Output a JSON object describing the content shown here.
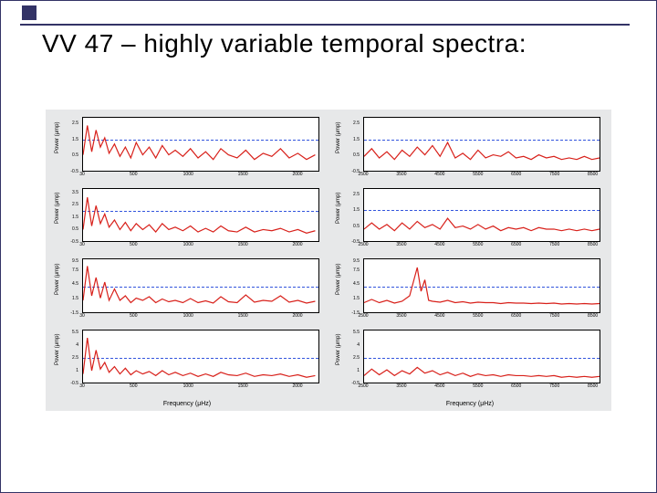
{
  "title": "VV 47 – highly variable temporal spectra:",
  "chart": {
    "background": "#e7e8e9",
    "plot_bg": "#ffffff",
    "axis_color": "#000000",
    "series_color": "#d8201a",
    "threshold_color": "#3355dd",
    "ylabel": "Power (μmp)",
    "xlabel": "Frequency (μHz)",
    "left_xlim": [
      30,
      2200
    ],
    "left_xticks": [
      30,
      500,
      1000,
      1500,
      2000
    ],
    "right_xlim": [
      2500,
      8700
    ],
    "right_xticks": [
      2500,
      3500,
      4500,
      5500,
      6500,
      7500,
      8500
    ],
    "panels": [
      {
        "col": "left",
        "row": 0,
        "ylim": [
          -0.5,
          2.9
        ],
        "yticks": [
          -0.5,
          0.5,
          1.5,
          2.5
        ],
        "threshold": 1.5,
        "series": [
          [
            30,
            0.5
          ],
          [
            70,
            2.4
          ],
          [
            110,
            0.7
          ],
          [
            150,
            2.1
          ],
          [
            190,
            1.0
          ],
          [
            230,
            1.6
          ],
          [
            270,
            0.6
          ],
          [
            320,
            1.2
          ],
          [
            370,
            0.4
          ],
          [
            420,
            1.0
          ],
          [
            470,
            0.3
          ],
          [
            520,
            1.3
          ],
          [
            580,
            0.5
          ],
          [
            640,
            1.0
          ],
          [
            700,
            0.3
          ],
          [
            760,
            1.1
          ],
          [
            820,
            0.5
          ],
          [
            880,
            0.8
          ],
          [
            950,
            0.4
          ],
          [
            1020,
            0.9
          ],
          [
            1090,
            0.3
          ],
          [
            1160,
            0.7
          ],
          [
            1230,
            0.2
          ],
          [
            1300,
            0.9
          ],
          [
            1370,
            0.5
          ],
          [
            1450,
            0.3
          ],
          [
            1530,
            0.8
          ],
          [
            1610,
            0.2
          ],
          [
            1690,
            0.6
          ],
          [
            1770,
            0.4
          ],
          [
            1850,
            0.9
          ],
          [
            1930,
            0.3
          ],
          [
            2010,
            0.6
          ],
          [
            2090,
            0.2
          ],
          [
            2170,
            0.5
          ]
        ]
      },
      {
        "col": "right",
        "row": 0,
        "ylim": [
          -0.5,
          2.9
        ],
        "yticks": [
          -0.5,
          0.5,
          1.5,
          2.5
        ],
        "threshold": 1.5,
        "series": [
          [
            2500,
            0.4
          ],
          [
            2700,
            0.9
          ],
          [
            2900,
            0.3
          ],
          [
            3100,
            0.7
          ],
          [
            3300,
            0.2
          ],
          [
            3500,
            0.8
          ],
          [
            3700,
            0.4
          ],
          [
            3900,
            1.0
          ],
          [
            4100,
            0.5
          ],
          [
            4300,
            1.1
          ],
          [
            4500,
            0.4
          ],
          [
            4700,
            1.3
          ],
          [
            4900,
            0.3
          ],
          [
            5100,
            0.6
          ],
          [
            5300,
            0.2
          ],
          [
            5500,
            0.8
          ],
          [
            5700,
            0.3
          ],
          [
            5900,
            0.5
          ],
          [
            6100,
            0.4
          ],
          [
            6300,
            0.7
          ],
          [
            6500,
            0.3
          ],
          [
            6700,
            0.4
          ],
          [
            6900,
            0.2
          ],
          [
            7100,
            0.5
          ],
          [
            7300,
            0.3
          ],
          [
            7500,
            0.4
          ],
          [
            7700,
            0.2
          ],
          [
            7900,
            0.3
          ],
          [
            8100,
            0.2
          ],
          [
            8300,
            0.4
          ],
          [
            8500,
            0.2
          ],
          [
            8700,
            0.3
          ]
        ]
      },
      {
        "col": "left",
        "row": 1,
        "ylim": [
          -0.5,
          3.9
        ],
        "yticks": [
          -0.5,
          0.5,
          1.5,
          2.5,
          3.5
        ],
        "threshold": 2.0,
        "series": [
          [
            30,
            0.5
          ],
          [
            70,
            3.2
          ],
          [
            110,
            0.8
          ],
          [
            150,
            2.5
          ],
          [
            190,
            1.0
          ],
          [
            230,
            1.8
          ],
          [
            270,
            0.7
          ],
          [
            320,
            1.3
          ],
          [
            370,
            0.5
          ],
          [
            420,
            1.1
          ],
          [
            470,
            0.4
          ],
          [
            520,
            1.0
          ],
          [
            580,
            0.5
          ],
          [
            640,
            0.9
          ],
          [
            700,
            0.3
          ],
          [
            760,
            1.0
          ],
          [
            820,
            0.5
          ],
          [
            880,
            0.7
          ],
          [
            950,
            0.4
          ],
          [
            1020,
            0.8
          ],
          [
            1090,
            0.3
          ],
          [
            1160,
            0.6
          ],
          [
            1230,
            0.3
          ],
          [
            1300,
            0.8
          ],
          [
            1370,
            0.4
          ],
          [
            1450,
            0.3
          ],
          [
            1530,
            0.7
          ],
          [
            1610,
            0.3
          ],
          [
            1690,
            0.5
          ],
          [
            1770,
            0.4
          ],
          [
            1850,
            0.6
          ],
          [
            1930,
            0.3
          ],
          [
            2010,
            0.5
          ],
          [
            2090,
            0.2
          ],
          [
            2170,
            0.4
          ]
        ]
      },
      {
        "col": "right",
        "row": 1,
        "ylim": [
          -0.5,
          2.9
        ],
        "yticks": [
          -0.5,
          0.5,
          1.5,
          2.5
        ],
        "threshold": 1.5,
        "series": [
          [
            2500,
            0.3
          ],
          [
            2700,
            0.7
          ],
          [
            2900,
            0.3
          ],
          [
            3100,
            0.6
          ],
          [
            3300,
            0.2
          ],
          [
            3500,
            0.7
          ],
          [
            3700,
            0.3
          ],
          [
            3900,
            0.8
          ],
          [
            4100,
            0.4
          ],
          [
            4300,
            0.6
          ],
          [
            4500,
            0.3
          ],
          [
            4700,
            1.0
          ],
          [
            4900,
            0.4
          ],
          [
            5100,
            0.5
          ],
          [
            5300,
            0.3
          ],
          [
            5500,
            0.6
          ],
          [
            5700,
            0.3
          ],
          [
            5900,
            0.5
          ],
          [
            6100,
            0.2
          ],
          [
            6300,
            0.4
          ],
          [
            6500,
            0.3
          ],
          [
            6700,
            0.4
          ],
          [
            6900,
            0.2
          ],
          [
            7100,
            0.4
          ],
          [
            7300,
            0.3
          ],
          [
            7500,
            0.3
          ],
          [
            7700,
            0.2
          ],
          [
            7900,
            0.3
          ],
          [
            8100,
            0.2
          ],
          [
            8300,
            0.3
          ],
          [
            8500,
            0.2
          ],
          [
            8700,
            0.3
          ]
        ]
      },
      {
        "col": "left",
        "row": 2,
        "ylim": [
          -1.5,
          10.0
        ],
        "yticks": [
          -1.5,
          1.5,
          4.5,
          7.5,
          9.5
        ],
        "threshold": 4.0,
        "series": [
          [
            30,
            1.0
          ],
          [
            70,
            8.5
          ],
          [
            110,
            2.0
          ],
          [
            150,
            6.0
          ],
          [
            190,
            1.5
          ],
          [
            230,
            5.0
          ],
          [
            270,
            1.0
          ],
          [
            320,
            3.5
          ],
          [
            370,
            1.0
          ],
          [
            420,
            2.0
          ],
          [
            470,
            0.5
          ],
          [
            520,
            1.5
          ],
          [
            580,
            1.0
          ],
          [
            640,
            1.8
          ],
          [
            700,
            0.5
          ],
          [
            760,
            1.3
          ],
          [
            820,
            0.7
          ],
          [
            880,
            1.0
          ],
          [
            950,
            0.5
          ],
          [
            1020,
            1.4
          ],
          [
            1090,
            0.5
          ],
          [
            1160,
            0.9
          ],
          [
            1230,
            0.4
          ],
          [
            1300,
            1.8
          ],
          [
            1370,
            0.7
          ],
          [
            1450,
            0.5
          ],
          [
            1530,
            2.2
          ],
          [
            1610,
            0.6
          ],
          [
            1690,
            1.0
          ],
          [
            1770,
            0.8
          ],
          [
            1850,
            2.0
          ],
          [
            1930,
            0.6
          ],
          [
            2010,
            1.0
          ],
          [
            2090,
            0.4
          ],
          [
            2170,
            0.8
          ]
        ]
      },
      {
        "col": "right",
        "row": 2,
        "ylim": [
          -1.5,
          10.0
        ],
        "yticks": [
          -1.5,
          1.5,
          4.5,
          7.5,
          9.5
        ],
        "threshold": 4.0,
        "series": [
          [
            2500,
            0.5
          ],
          [
            2700,
            1.2
          ],
          [
            2900,
            0.5
          ],
          [
            3100,
            1.0
          ],
          [
            3300,
            0.4
          ],
          [
            3500,
            0.8
          ],
          [
            3700,
            2.0
          ],
          [
            3900,
            8.2
          ],
          [
            4000,
            3.0
          ],
          [
            4100,
            5.5
          ],
          [
            4200,
            1.0
          ],
          [
            4300,
            0.8
          ],
          [
            4500,
            0.6
          ],
          [
            4700,
            1.0
          ],
          [
            4900,
            0.5
          ],
          [
            5100,
            0.7
          ],
          [
            5300,
            0.4
          ],
          [
            5500,
            0.6
          ],
          [
            5700,
            0.5
          ],
          [
            5900,
            0.5
          ],
          [
            6100,
            0.3
          ],
          [
            6300,
            0.5
          ],
          [
            6500,
            0.4
          ],
          [
            6700,
            0.4
          ],
          [
            6900,
            0.3
          ],
          [
            7100,
            0.4
          ],
          [
            7300,
            0.3
          ],
          [
            7500,
            0.4
          ],
          [
            7700,
            0.2
          ],
          [
            7900,
            0.3
          ],
          [
            8100,
            0.2
          ],
          [
            8300,
            0.3
          ],
          [
            8500,
            0.2
          ],
          [
            8700,
            0.3
          ]
        ]
      },
      {
        "col": "left",
        "row": 3,
        "ylim": [
          -0.5,
          5.9
        ],
        "yticks": [
          -0.5,
          1.0,
          2.5,
          4.0,
          5.5
        ],
        "threshold": 2.5,
        "series": [
          [
            30,
            0.6
          ],
          [
            70,
            5.0
          ],
          [
            110,
            1.0
          ],
          [
            150,
            3.5
          ],
          [
            190,
            1.2
          ],
          [
            230,
            2.0
          ],
          [
            270,
            0.8
          ],
          [
            320,
            1.5
          ],
          [
            370,
            0.6
          ],
          [
            420,
            1.3
          ],
          [
            470,
            0.5
          ],
          [
            520,
            1.0
          ],
          [
            580,
            0.6
          ],
          [
            640,
            0.9
          ],
          [
            700,
            0.4
          ],
          [
            760,
            1.0
          ],
          [
            820,
            0.5
          ],
          [
            880,
            0.8
          ],
          [
            950,
            0.4
          ],
          [
            1020,
            0.7
          ],
          [
            1090,
            0.3
          ],
          [
            1160,
            0.6
          ],
          [
            1230,
            0.3
          ],
          [
            1300,
            0.8
          ],
          [
            1370,
            0.5
          ],
          [
            1450,
            0.4
          ],
          [
            1530,
            0.7
          ],
          [
            1610,
            0.3
          ],
          [
            1690,
            0.5
          ],
          [
            1770,
            0.4
          ],
          [
            1850,
            0.6
          ],
          [
            1930,
            0.3
          ],
          [
            2010,
            0.5
          ],
          [
            2090,
            0.2
          ],
          [
            2170,
            0.4
          ]
        ]
      },
      {
        "col": "right",
        "row": 3,
        "ylim": [
          -0.5,
          5.9
        ],
        "yticks": [
          -0.5,
          1.0,
          2.5,
          4.0,
          5.5
        ],
        "threshold": 2.5,
        "series": [
          [
            2500,
            0.4
          ],
          [
            2700,
            1.2
          ],
          [
            2900,
            0.5
          ],
          [
            3100,
            1.1
          ],
          [
            3300,
            0.4
          ],
          [
            3500,
            1.0
          ],
          [
            3700,
            0.6
          ],
          [
            3900,
            1.4
          ],
          [
            4100,
            0.7
          ],
          [
            4300,
            1.0
          ],
          [
            4500,
            0.5
          ],
          [
            4700,
            0.8
          ],
          [
            4900,
            0.4
          ],
          [
            5100,
            0.7
          ],
          [
            5300,
            0.3
          ],
          [
            5500,
            0.6
          ],
          [
            5700,
            0.4
          ],
          [
            5900,
            0.5
          ],
          [
            6100,
            0.3
          ],
          [
            6300,
            0.5
          ],
          [
            6500,
            0.4
          ],
          [
            6700,
            0.4
          ],
          [
            6900,
            0.3
          ],
          [
            7100,
            0.4
          ],
          [
            7300,
            0.3
          ],
          [
            7500,
            0.4
          ],
          [
            7700,
            0.2
          ],
          [
            7900,
            0.3
          ],
          [
            8100,
            0.2
          ],
          [
            8300,
            0.3
          ],
          [
            8500,
            0.2
          ],
          [
            8700,
            0.3
          ]
        ]
      }
    ]
  }
}
